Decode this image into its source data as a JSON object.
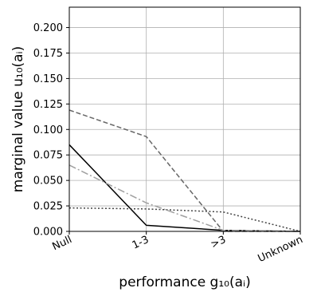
{
  "chart_data": {
    "type": "line",
    "xlabel": "performance g₁₀(aᵢ)",
    "ylabel": "marginal value u₁₀(aᵢ)",
    "categories": [
      "Null",
      "1-3",
      ">3",
      "Unknown"
    ],
    "ylim": [
      0,
      0.22
    ],
    "yticks": [
      0.0,
      0.025,
      0.05,
      0.075,
      0.1,
      0.125,
      0.15,
      0.175,
      0.2
    ],
    "ytick_labels": [
      "0.000",
      "0.025",
      "0.050",
      "0.075",
      "0.100",
      "0.125",
      "0.150",
      "0.175",
      "0.200"
    ],
    "grid": true,
    "series": [
      {
        "style": "solid",
        "color": "#000000",
        "values": [
          0.085,
          0.006,
          0.001,
          0.0
        ]
      },
      {
        "style": "dashed",
        "color": "#666666",
        "values": [
          0.119,
          0.093,
          0.0,
          0.0
        ]
      },
      {
        "style": "dashdot",
        "color": "#a0a0a0",
        "values": [
          0.065,
          0.028,
          0.001,
          0.0
        ]
      },
      {
        "style": "dotted",
        "color": "#444444",
        "values": [
          0.023,
          0.022,
          0.019,
          0.0
        ]
      }
    ]
  }
}
